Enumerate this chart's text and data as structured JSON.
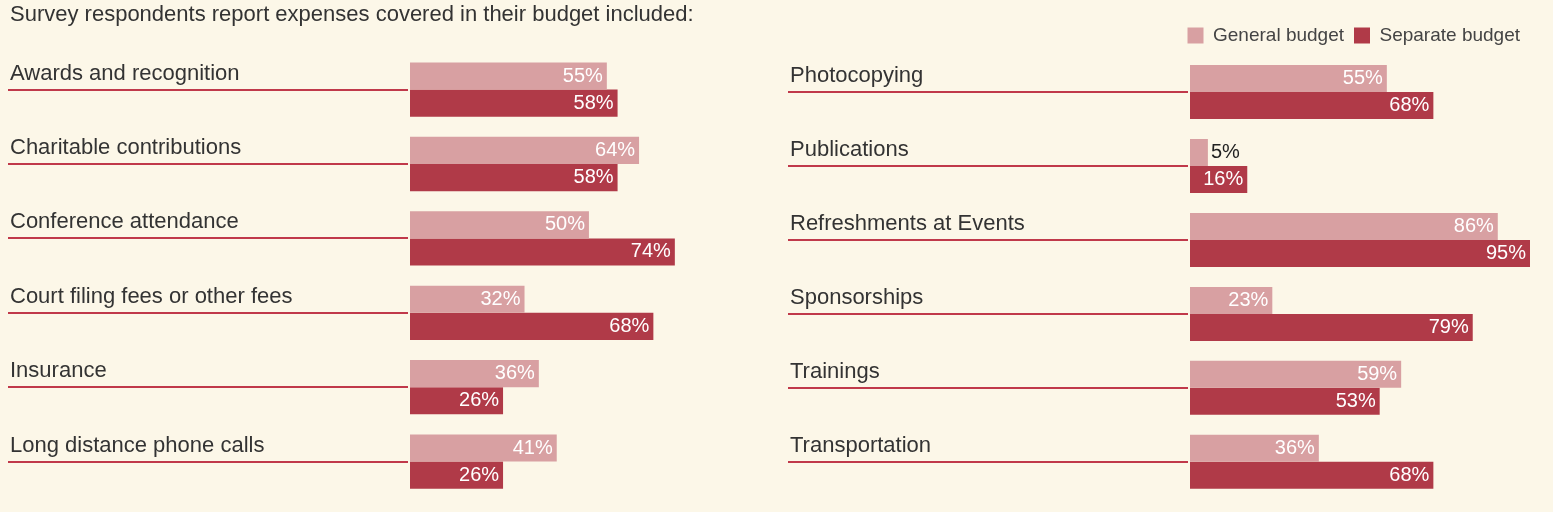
{
  "chart_data": [
    {
      "type": "bar",
      "title": "Survey respondents report expenses covered in their budget included:",
      "orientation": "horizontal",
      "categories": [
        "Awards and recognition",
        "Charitable contributions",
        "Conference attendance",
        "Court filing fees or other fees",
        "Insurance",
        "Long distance phone calls"
      ],
      "series": [
        {
          "color": "#d8a0a2",
          "values": [
            55,
            64,
            50,
            32,
            36,
            41
          ],
          "value_labels": [
            "55%",
            "64%",
            "50%",
            "32%",
            "36%",
            "41%"
          ]
        },
        {
          "color": "#b03a48",
          "values": [
            58,
            58,
            74,
            68,
            26,
            26
          ],
          "value_labels": [
            "58%",
            "58%",
            "74%",
            "68%",
            "26%",
            "26%"
          ]
        }
      ],
      "tick_labels": "y",
      "grid": false,
      "legend": false
    },
    {
      "type": "bar",
      "orientation": "horizontal",
      "categories": [
        "Photocopying",
        "Publications",
        "Refreshments at Events",
        "Sponsorships",
        "Trainings",
        "Transportation"
      ],
      "series": [
        {
          "name": "General budget",
          "color": "#d8a0a2",
          "values": [
            55,
            5,
            86,
            23,
            59,
            36
          ],
          "value_labels": [
            "55%",
            "5%",
            "86%",
            "23%",
            "59%",
            "36%"
          ]
        },
        {
          "name": "Separate budget",
          "color": "#b03a48",
          "values": [
            68,
            16,
            95,
            79,
            53,
            68
          ],
          "value_labels": [
            "68%",
            "16%",
            "95%",
            "79%",
            "53%",
            "68%"
          ]
        }
      ],
      "tick_labels": "y",
      "grid": false,
      "legend": "top right"
    }
  ]
}
